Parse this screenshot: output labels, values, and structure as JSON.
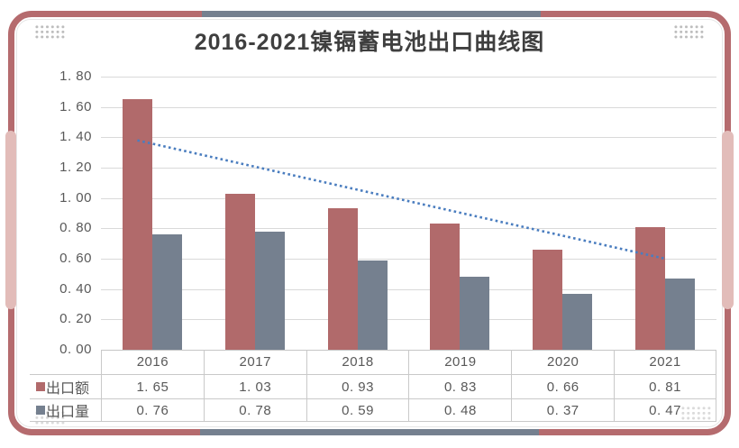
{
  "title": "2016-2021镍镉蓄电池出口曲线图",
  "chart_data": {
    "type": "bar",
    "title": "2016-2021镍镉蓄电池出口曲线图",
    "categories": [
      "2016",
      "2017",
      "2018",
      "2019",
      "2020",
      "2021"
    ],
    "series": [
      {
        "name": "出口额",
        "values": [
          1.65,
          1.03,
          0.93,
          0.83,
          0.66,
          0.81
        ],
        "color": "#B16A6B"
      },
      {
        "name": "出口量",
        "values": [
          0.76,
          0.78,
          0.59,
          0.48,
          0.37,
          0.47
        ],
        "color": "#75808F"
      }
    ],
    "trendline": {
      "series": "出口额",
      "type": "linear",
      "style": "dotted",
      "start_value": 1.38,
      "end_value": 0.6,
      "color": "#4A7DBF"
    },
    "ylim": [
      0,
      1.8
    ],
    "ytick_labels": [
      "1. 80",
      "1. 60",
      "1. 40",
      "1. 20",
      "1. 00",
      "0. 80",
      "0. 60",
      "0. 40",
      "0. 20",
      "0. 00"
    ],
    "grid": true,
    "legend_position": "data-table-left"
  },
  "data_table": {
    "corner_label": "",
    "rows": [
      {
        "label": "出口额",
        "marker_color": "#B16A6B",
        "display_values": [
          "1. 65",
          "1. 03",
          "0. 93",
          "0. 83",
          "0. 66",
          "0. 81"
        ]
      },
      {
        "label": "出口量",
        "marker_color": "#75808F",
        "display_values": [
          "0. 76",
          "0. 78",
          "0. 59",
          "0. 48",
          "0. 37",
          "0. 47"
        ]
      }
    ]
  },
  "colors": {
    "frame": "#B56B6E",
    "accent_segment": "#75808F",
    "pink_accent": "#E2BCB9",
    "gridline": "#D9D9D9",
    "axis_line": "#C6C6C6",
    "table_border": "#C9C9C9",
    "text": "#595959",
    "title_text": "#3F3F3F"
  }
}
